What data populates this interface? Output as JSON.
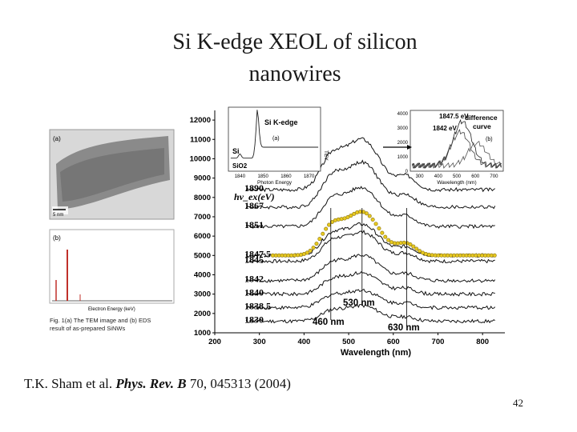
{
  "slide": {
    "title_line1": "Si K-edge XEOL of silicon",
    "title_line2": "nanowires",
    "citation_authors": "T.K. Sham et al.",
    "citation_journal": "Phys. Rev. B",
    "citation_rest": "70, 045313 (2004)",
    "page_number": "42"
  },
  "left_figure": {
    "panel_a": "(a)",
    "panel_b": "(b)",
    "scale_bar": "5 nm",
    "eds_xlabel": "Electron Energy (keV)",
    "caption": "Fig. 1(a) The TEM image and (b) EDS result of as-prepared SiNWs"
  },
  "chart_data": [
    {
      "type": "line",
      "title": "",
      "xlabel": "Wavelength (nm)",
      "ylabel": "",
      "xlim": [
        200,
        850
      ],
      "ylim": [
        1000,
        12500
      ],
      "x_ticks": [
        200,
        300,
        400,
        500,
        600,
        700,
        800
      ],
      "y_ticks": [
        1000,
        2000,
        3000,
        4000,
        5000,
        6000,
        7000,
        8000,
        9000,
        10000,
        11000,
        12000
      ],
      "legend_header": "hv_ex(eV)",
      "series": [
        {
          "name": "1890",
          "offset": 8400
        },
        {
          "name": "1867",
          "offset": 7500
        },
        {
          "name": "1851",
          "offset": 6500
        },
        {
          "name": "1847.5",
          "offset": 5000,
          "highlighted": true
        },
        {
          "name": "1845",
          "offset": 4700
        },
        {
          "name": "1842",
          "offset": 3700
        },
        {
          "name": "1840",
          "offset": 3000
        },
        {
          "name": "1838.5",
          "offset": 2300
        },
        {
          "name": "1830",
          "offset": 1600
        }
      ],
      "annotations": [
        "530 nm",
        "460 nm",
        "630 nm"
      ]
    },
    {
      "type": "line",
      "title": "Si K-edge",
      "xlabel": "Photon Energy",
      "panel": "(a)",
      "x_ticks": [
        1840,
        1850,
        1860,
        1870
      ],
      "labels": [
        "Si",
        "SiO2"
      ],
      "right_axis_label": "TEY"
    },
    {
      "type": "line",
      "xlabel": "Wavelength (nm)",
      "panel": "(b)",
      "x_ticks": [
        300,
        400,
        500,
        600,
        700
      ],
      "y_ticks": [
        0,
        1000,
        2000,
        3000,
        4000
      ],
      "annotations": [
        "1847.5 eV",
        "1842 eV",
        "difference curve"
      ]
    }
  ]
}
